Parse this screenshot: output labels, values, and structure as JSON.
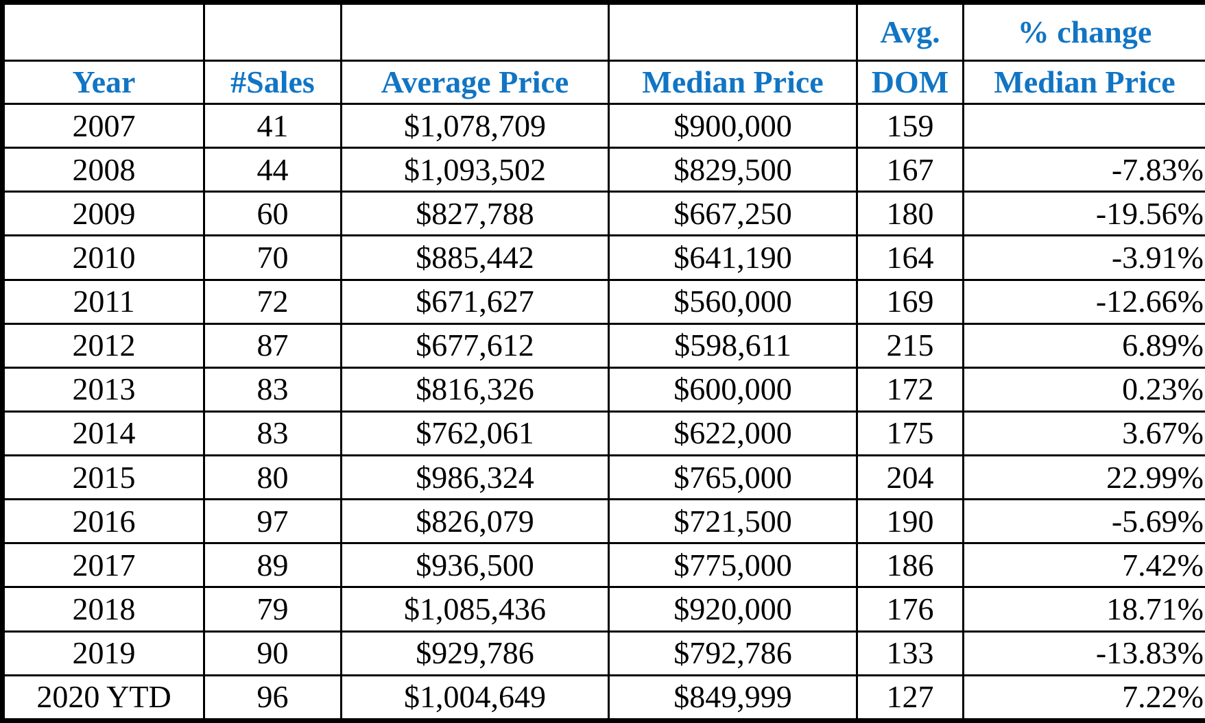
{
  "table": {
    "header": [
      {
        "bottom": "Year"
      },
      {
        "bottom": "#Sales"
      },
      {
        "bottom": "Average Price"
      },
      {
        "bottom": "Median Price"
      },
      {
        "top": "Avg.",
        "bottom": "DOM"
      },
      {
        "top": "% change",
        "bottom": "Median Price"
      }
    ],
    "rows": [
      [
        "2007",
        "41",
        "$1,078,709",
        "$900,000",
        "159",
        null
      ],
      [
        "2008",
        "44",
        "$1,093,502",
        "$829,500",
        "167",
        "-7.83%"
      ],
      [
        "2009",
        "60",
        "$827,788",
        "$667,250",
        "180",
        "-19.56%"
      ],
      [
        "2010",
        "70",
        "$885,442",
        "$641,190",
        "164",
        "-3.91%"
      ],
      [
        "2011",
        "72",
        "$671,627",
        "$560,000",
        "169",
        "-12.66%"
      ],
      [
        "2012",
        "87",
        "$677,612",
        "$598,611",
        "215",
        "6.89%"
      ],
      [
        "2013",
        "83",
        "$816,326",
        "$600,000",
        "172",
        "0.23%"
      ],
      [
        "2014",
        "83",
        "$762,061",
        "$622,000",
        "175",
        "3.67%"
      ],
      [
        "2015",
        "80",
        "$986,324",
        "$765,000",
        "204",
        "22.99%"
      ],
      [
        "2016",
        "97",
        "$826,079",
        "$721,500",
        "190",
        "-5.69%"
      ],
      [
        "2017",
        "89",
        "$936,500",
        "$775,000",
        "186",
        "7.42%"
      ],
      [
        "2018",
        "79",
        "$1,085,436",
        "$920,000",
        "176",
        "18.71%"
      ],
      [
        "2019",
        "90",
        "$929,786",
        "$792,786",
        "133",
        "-13.83%"
      ],
      [
        "2020 YTD",
        "96",
        "$1,004,649",
        "$849,999",
        "127",
        "7.22%"
      ]
    ]
  }
}
